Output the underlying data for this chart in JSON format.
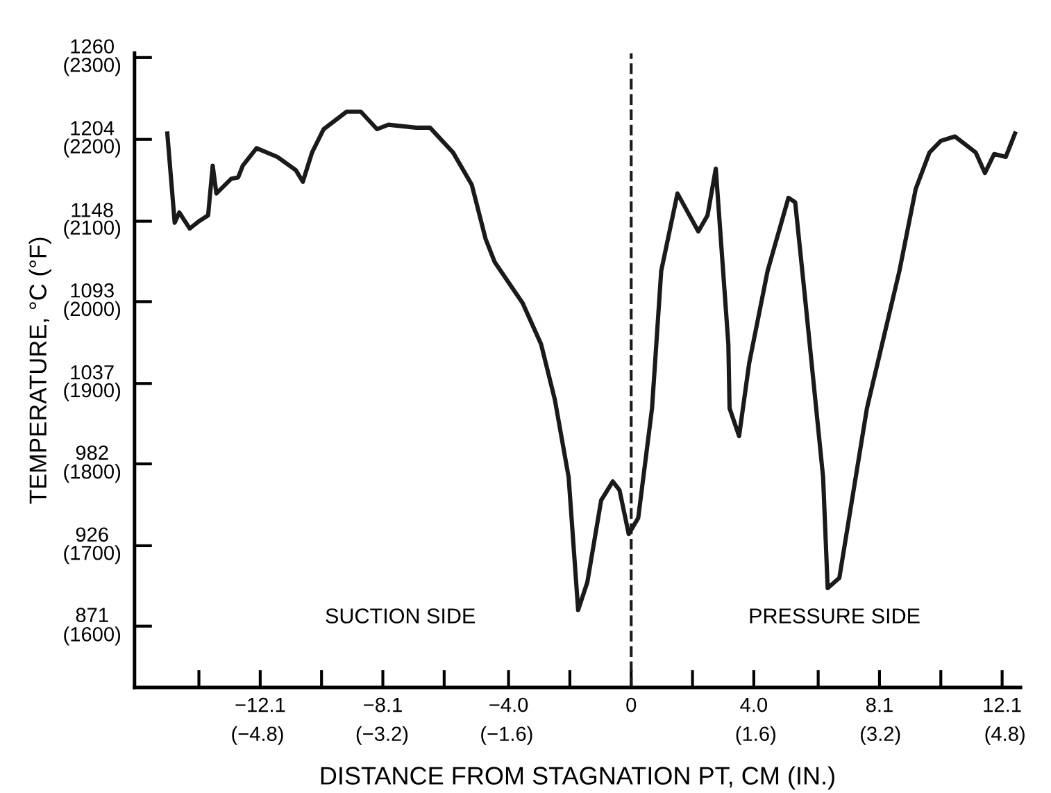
{
  "chart_data": {
    "type": "line",
    "xlabel": "DISTANCE FROM STAGNATION PT, CM (IN.)",
    "y2label": "TEMPERATURE, °C (°F)",
    "series": [
      {
        "color": "#1a1a1a",
        "x": [
          -15.13,
          -14.89,
          -14.74,
          -14.4,
          -14.1,
          -13.8,
          -13.65,
          -13.53,
          -13.05,
          -12.82,
          -12.67,
          -12.22,
          -11.54,
          -10.94,
          -10.71,
          -10.41,
          -10.03,
          -9.28,
          -8.82,
          -8.29,
          -7.92,
          -7.01,
          -6.56,
          -5.81,
          -5.2,
          -4.75,
          -4.45,
          -3.54,
          -2.94,
          -2.49,
          -2.04,
          -1.73,
          -1.43,
          -0.98,
          -0.6,
          -0.38,
          -0.08,
          0.23,
          0.68,
          0.98,
          1.51,
          2.19,
          2.49,
          2.76,
          3.17,
          3.21,
          3.52,
          3.85,
          4.45,
          5.13,
          5.35,
          5.66,
          6.26,
          6.41,
          6.79,
          7.69,
          8.75,
          9.28,
          9.73,
          10.1,
          10.56,
          11.24,
          11.54,
          11.84,
          12.22,
          12.52
        ],
        "values": [
          1208,
          1147,
          1154,
          1143,
          1148,
          1152,
          1186,
          1167,
          1177,
          1178,
          1186,
          1198,
          1192,
          1183,
          1175,
          1195,
          1211,
          1223,
          1223,
          1211,
          1214,
          1212,
          1212,
          1195,
          1173,
          1136,
          1120,
          1092,
          1064,
          1026,
          973,
          882,
          901,
          957,
          970,
          964,
          934,
          945,
          1020,
          1114,
          1167,
          1141,
          1152,
          1184,
          1064,
          1020,
          1001,
          1051,
          1114,
          1164,
          1161,
          1098,
          973,
          897,
          904,
          1020,
          1114,
          1170,
          1195,
          1203,
          1206,
          1195,
          1181,
          1194,
          1192,
          1208
        ]
      }
    ],
    "xlim": [
      -16.2,
      12.7
    ],
    "ylim": [
      829,
      1263
    ],
    "xticks": [
      {
        "value": -14.1,
        "label": null
      },
      -12.1,
      {
        "value": -10.1,
        "label": null
      },
      -8.1,
      {
        "value": -6.1,
        "label": null
      },
      {
        "value": -4.0,
        "label": "−4.0"
      },
      {
        "value": -2.0,
        "label": null
      },
      0,
      {
        "value": 2.0,
        "label": null
      },
      {
        "value": 4.0,
        "label": "4.0"
      },
      {
        "value": 6.1,
        "label": null
      },
      8.1,
      {
        "value": 10.1,
        "label": null
      },
      12.1
    ],
    "x2lim": [
      -6.38,
      5.0
    ],
    "x2ticks": [
      {
        "value": -4.8,
        "label": "(−4.8)"
      },
      {
        "value": -3.2,
        "label": "(−3.2)"
      },
      {
        "value": -1.6,
        "label": "(−1.6)"
      },
      {
        "value": 1.6,
        "label": "(1.6)"
      },
      {
        "value": 3.2,
        "label": "(3.2)"
      },
      {
        "value": 4.8,
        "label": "(4.8)"
      }
    ],
    "yticks": [
      871,
      926,
      982,
      1037,
      1093,
      1148,
      1204,
      1260
    ],
    "y2lim": [
      1525,
      2305
    ],
    "y2ticks": [
      {
        "value": 1600,
        "label": "(1600)"
      },
      {
        "value": 1700,
        "label": "(1700)"
      },
      {
        "value": 1800,
        "label": "(1800)"
      },
      {
        "value": 1900,
        "label": "(1900)"
      },
      {
        "value": 2000,
        "label": "(2000)"
      },
      {
        "value": 2100,
        "label": "(2100)"
      },
      {
        "value": 2200,
        "label": "(2200)"
      },
      {
        "value": 2300,
        "label": "(2300)"
      }
    ],
    "ref_lines": [
      {
        "axis": "x",
        "value": 0,
        "line_style": "dashed",
        "color": "#1a1a1a"
      }
    ],
    "annotations": [
      "SUCTION SIDE",
      "PRESSURE SIDE"
    ],
    "grid": false,
    "line_style": "solid",
    "marker": "none"
  }
}
